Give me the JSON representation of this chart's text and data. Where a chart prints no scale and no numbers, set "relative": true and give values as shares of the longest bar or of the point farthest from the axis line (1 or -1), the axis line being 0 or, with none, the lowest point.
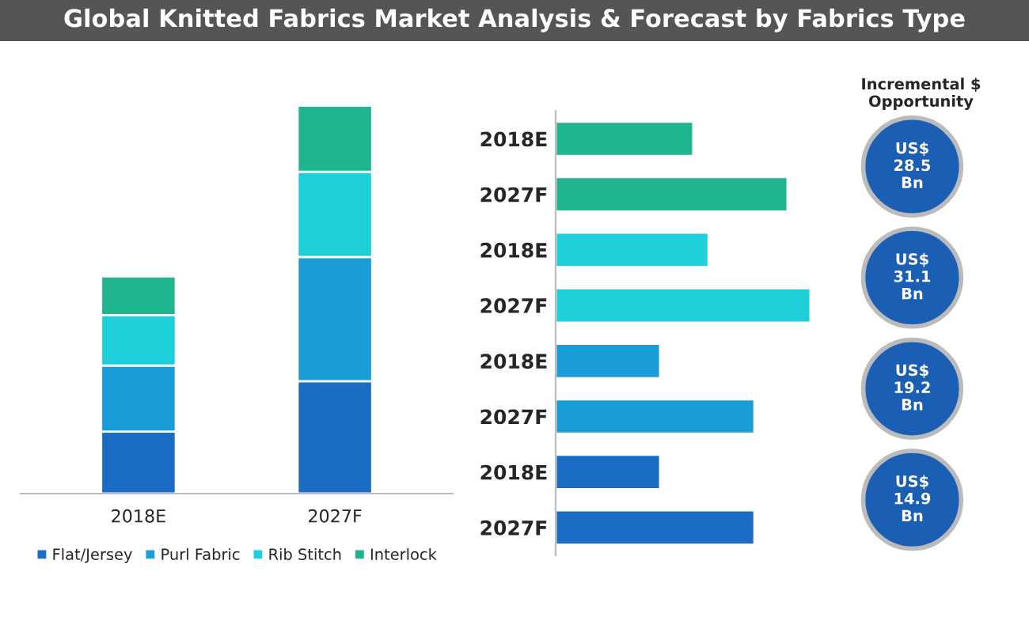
{
  "chart_data": [
    {
      "type": "bar",
      "title": "Global Knitted Fabrics Market Analysis & Forecast by Fabrics Type",
      "categories": [
        "2018E",
        "2027F"
      ],
      "stacked": true,
      "relative": true,
      "legend": "bottom",
      "series": [
        {
          "name": "Flat/Jersey",
          "color": "#1a6cc4",
          "values": [
            0.16,
            0.29
          ]
        },
        {
          "name": "Purl Fabric",
          "color": "#1a9cd8",
          "values": [
            0.17,
            0.32
          ]
        },
        {
          "name": "Rib Stitch",
          "color": "#1ccfd9",
          "values": [
            0.13,
            0.22
          ]
        },
        {
          "name": "Interlock",
          "color": "#1fb58f",
          "values": [
            0.1,
            0.17
          ]
        }
      ]
    },
    {
      "type": "bar",
      "orientation": "horizontal",
      "relative": true,
      "categories": [
        "2018E",
        "2027F",
        "2018E",
        "2027F",
        "2018E",
        "2027F",
        "2018E",
        "2027F"
      ],
      "values": [
        0.54,
        0.91,
        0.6,
        1.0,
        0.41,
        0.78,
        0.41,
        0.78
      ],
      "colors": [
        "#1fb58f",
        "#1fb58f",
        "#1ccfd9",
        "#1ccfd9",
        "#1a9cd8",
        "#1a9cd8",
        "#1a6cc4",
        "#1a6cc4"
      ]
    },
    {
      "type": "other",
      "title": "Incremental $\nOpportunity",
      "annotations": [
        "US$\n28.5\nBn",
        "US$\n31.1\nBn",
        "US$\n19.2\nBn",
        "US$\n14.9\nBn"
      ]
    }
  ]
}
